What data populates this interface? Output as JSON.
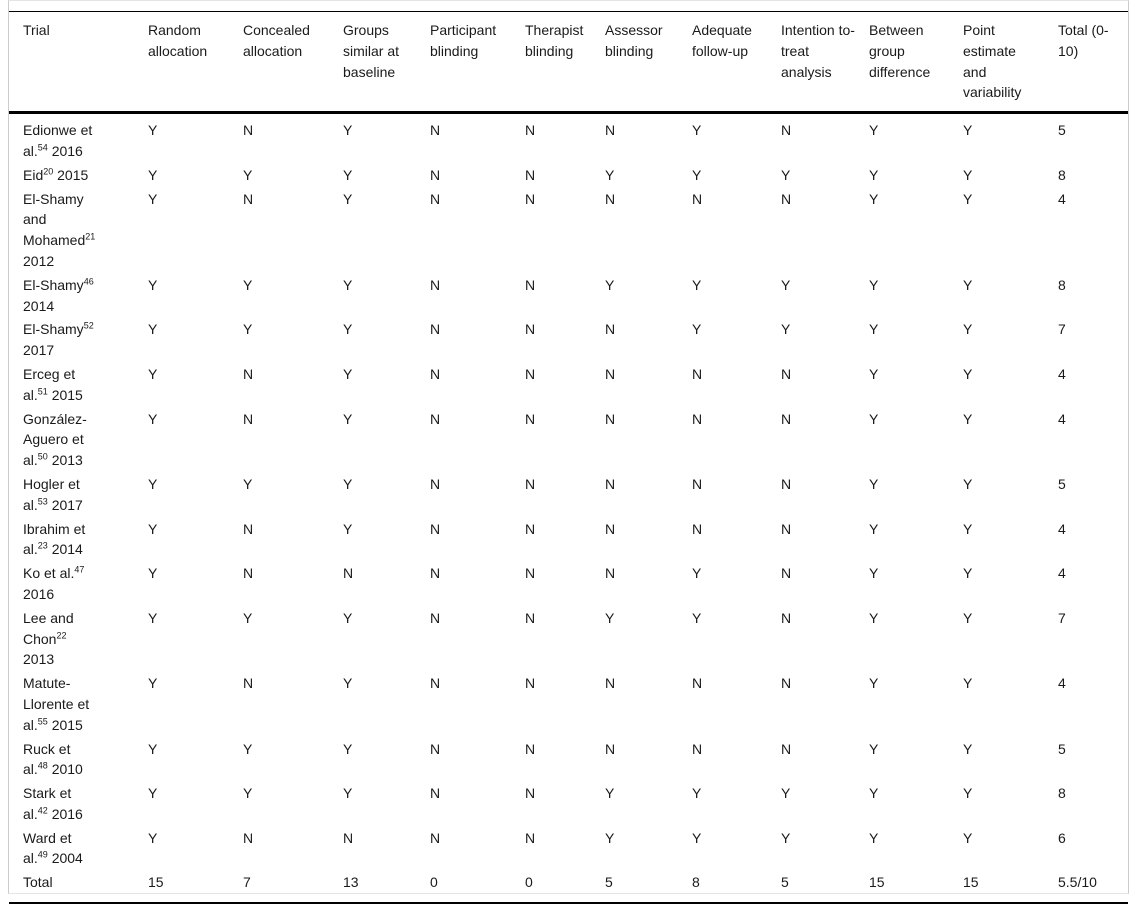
{
  "table": {
    "columns": [
      "Trial",
      "Random allocation",
      "Concealed allocation",
      "Groups similar at baseline",
      "Participant blinding",
      "Therapist blinding",
      "Assessor blinding",
      "Adequate follow-up",
      "Intention to-treat analysis",
      "Between group difference",
      "Point estimate and variability",
      "Total (0-10)"
    ],
    "rows": [
      {
        "trial": {
          "name": "Edionwe et al.",
          "ref": "54",
          "year": "2016"
        },
        "values": [
          "Y",
          "N",
          "Y",
          "N",
          "N",
          "N",
          "Y",
          "N",
          "Y",
          "Y",
          "5"
        ]
      },
      {
        "trial": {
          "name": "Eid",
          "ref": "20",
          "year": "2015"
        },
        "values": [
          "Y",
          "Y",
          "Y",
          "N",
          "N",
          "Y",
          "Y",
          "Y",
          "Y",
          "Y",
          "8"
        ]
      },
      {
        "trial": {
          "name": "El-Shamy and Mohamed",
          "ref": "21",
          "year": "2012"
        },
        "values": [
          "Y",
          "N",
          "Y",
          "N",
          "N",
          "N",
          "N",
          "N",
          "Y",
          "Y",
          "4"
        ]
      },
      {
        "trial": {
          "name": "El-Shamy",
          "ref": "46",
          "year": "2014"
        },
        "values": [
          "Y",
          "Y",
          "Y",
          "N",
          "N",
          "Y",
          "Y",
          "Y",
          "Y",
          "Y",
          "8"
        ]
      },
      {
        "trial": {
          "name": "El-Shamy",
          "ref": "52",
          "year": "2017"
        },
        "values": [
          "Y",
          "Y",
          "Y",
          "N",
          "N",
          "N",
          "Y",
          "Y",
          "Y",
          "Y",
          "7"
        ]
      },
      {
        "trial": {
          "name": "Erceg et al.",
          "ref": "51",
          "year": "2015"
        },
        "values": [
          "Y",
          "N",
          "Y",
          "N",
          "N",
          "N",
          "N",
          "N",
          "Y",
          "Y",
          "4"
        ]
      },
      {
        "trial": {
          "name": "González-Aguero et al.",
          "ref": "50",
          "year": "2013"
        },
        "values": [
          "Y",
          "N",
          "Y",
          "N",
          "N",
          "N",
          "N",
          "N",
          "Y",
          "Y",
          "4"
        ]
      },
      {
        "trial": {
          "name": "Hogler et al.",
          "ref": "53",
          "year": "2017"
        },
        "values": [
          "Y",
          "Y",
          "Y",
          "N",
          "N",
          "N",
          "N",
          "N",
          "Y",
          "Y",
          "5"
        ]
      },
      {
        "trial": {
          "name": "Ibrahim et al.",
          "ref": "23",
          "year": "2014"
        },
        "values": [
          "Y",
          "N",
          "Y",
          "N",
          "N",
          "N",
          "N",
          "N",
          "Y",
          "Y",
          "4"
        ]
      },
      {
        "trial": {
          "name": "Ko et al.",
          "ref": "47",
          "year": "2016"
        },
        "values": [
          "Y",
          "N",
          "N",
          "N",
          "N",
          "N",
          "Y",
          "N",
          "Y",
          "Y",
          "4"
        ]
      },
      {
        "trial": {
          "name": "Lee and Chon",
          "ref": "22",
          "year": "2013"
        },
        "values": [
          "Y",
          "Y",
          "Y",
          "N",
          "N",
          "Y",
          "Y",
          "N",
          "Y",
          "Y",
          "7"
        ]
      },
      {
        "trial": {
          "name": "Matute-Llorente et al.",
          "ref": "55",
          "year": "2015"
        },
        "values": [
          "Y",
          "N",
          "Y",
          "N",
          "N",
          "N",
          "N",
          "N",
          "Y",
          "Y",
          "4"
        ]
      },
      {
        "trial": {
          "name": "Ruck et al.",
          "ref": "48",
          "year": "2010"
        },
        "values": [
          "Y",
          "Y",
          "Y",
          "N",
          "N",
          "N",
          "N",
          "N",
          "Y",
          "Y",
          "5"
        ]
      },
      {
        "trial": {
          "name": "Stark et al.",
          "ref": "42",
          "year": "2016"
        },
        "values": [
          "Y",
          "Y",
          "Y",
          "N",
          "N",
          "Y",
          "Y",
          "Y",
          "Y",
          "Y",
          "8"
        ]
      },
      {
        "trial": {
          "name": "Ward et al.",
          "ref": "49",
          "year": "2004"
        },
        "values": [
          "Y",
          "N",
          "N",
          "N",
          "N",
          "Y",
          "Y",
          "Y",
          "Y",
          "Y",
          "6"
        ]
      }
    ],
    "total_row": {
      "label": "Total",
      "values": [
        "15",
        "7",
        "13",
        "0",
        "0",
        "5",
        "8",
        "5",
        "15",
        "15",
        "5.5/10"
      ]
    }
  }
}
